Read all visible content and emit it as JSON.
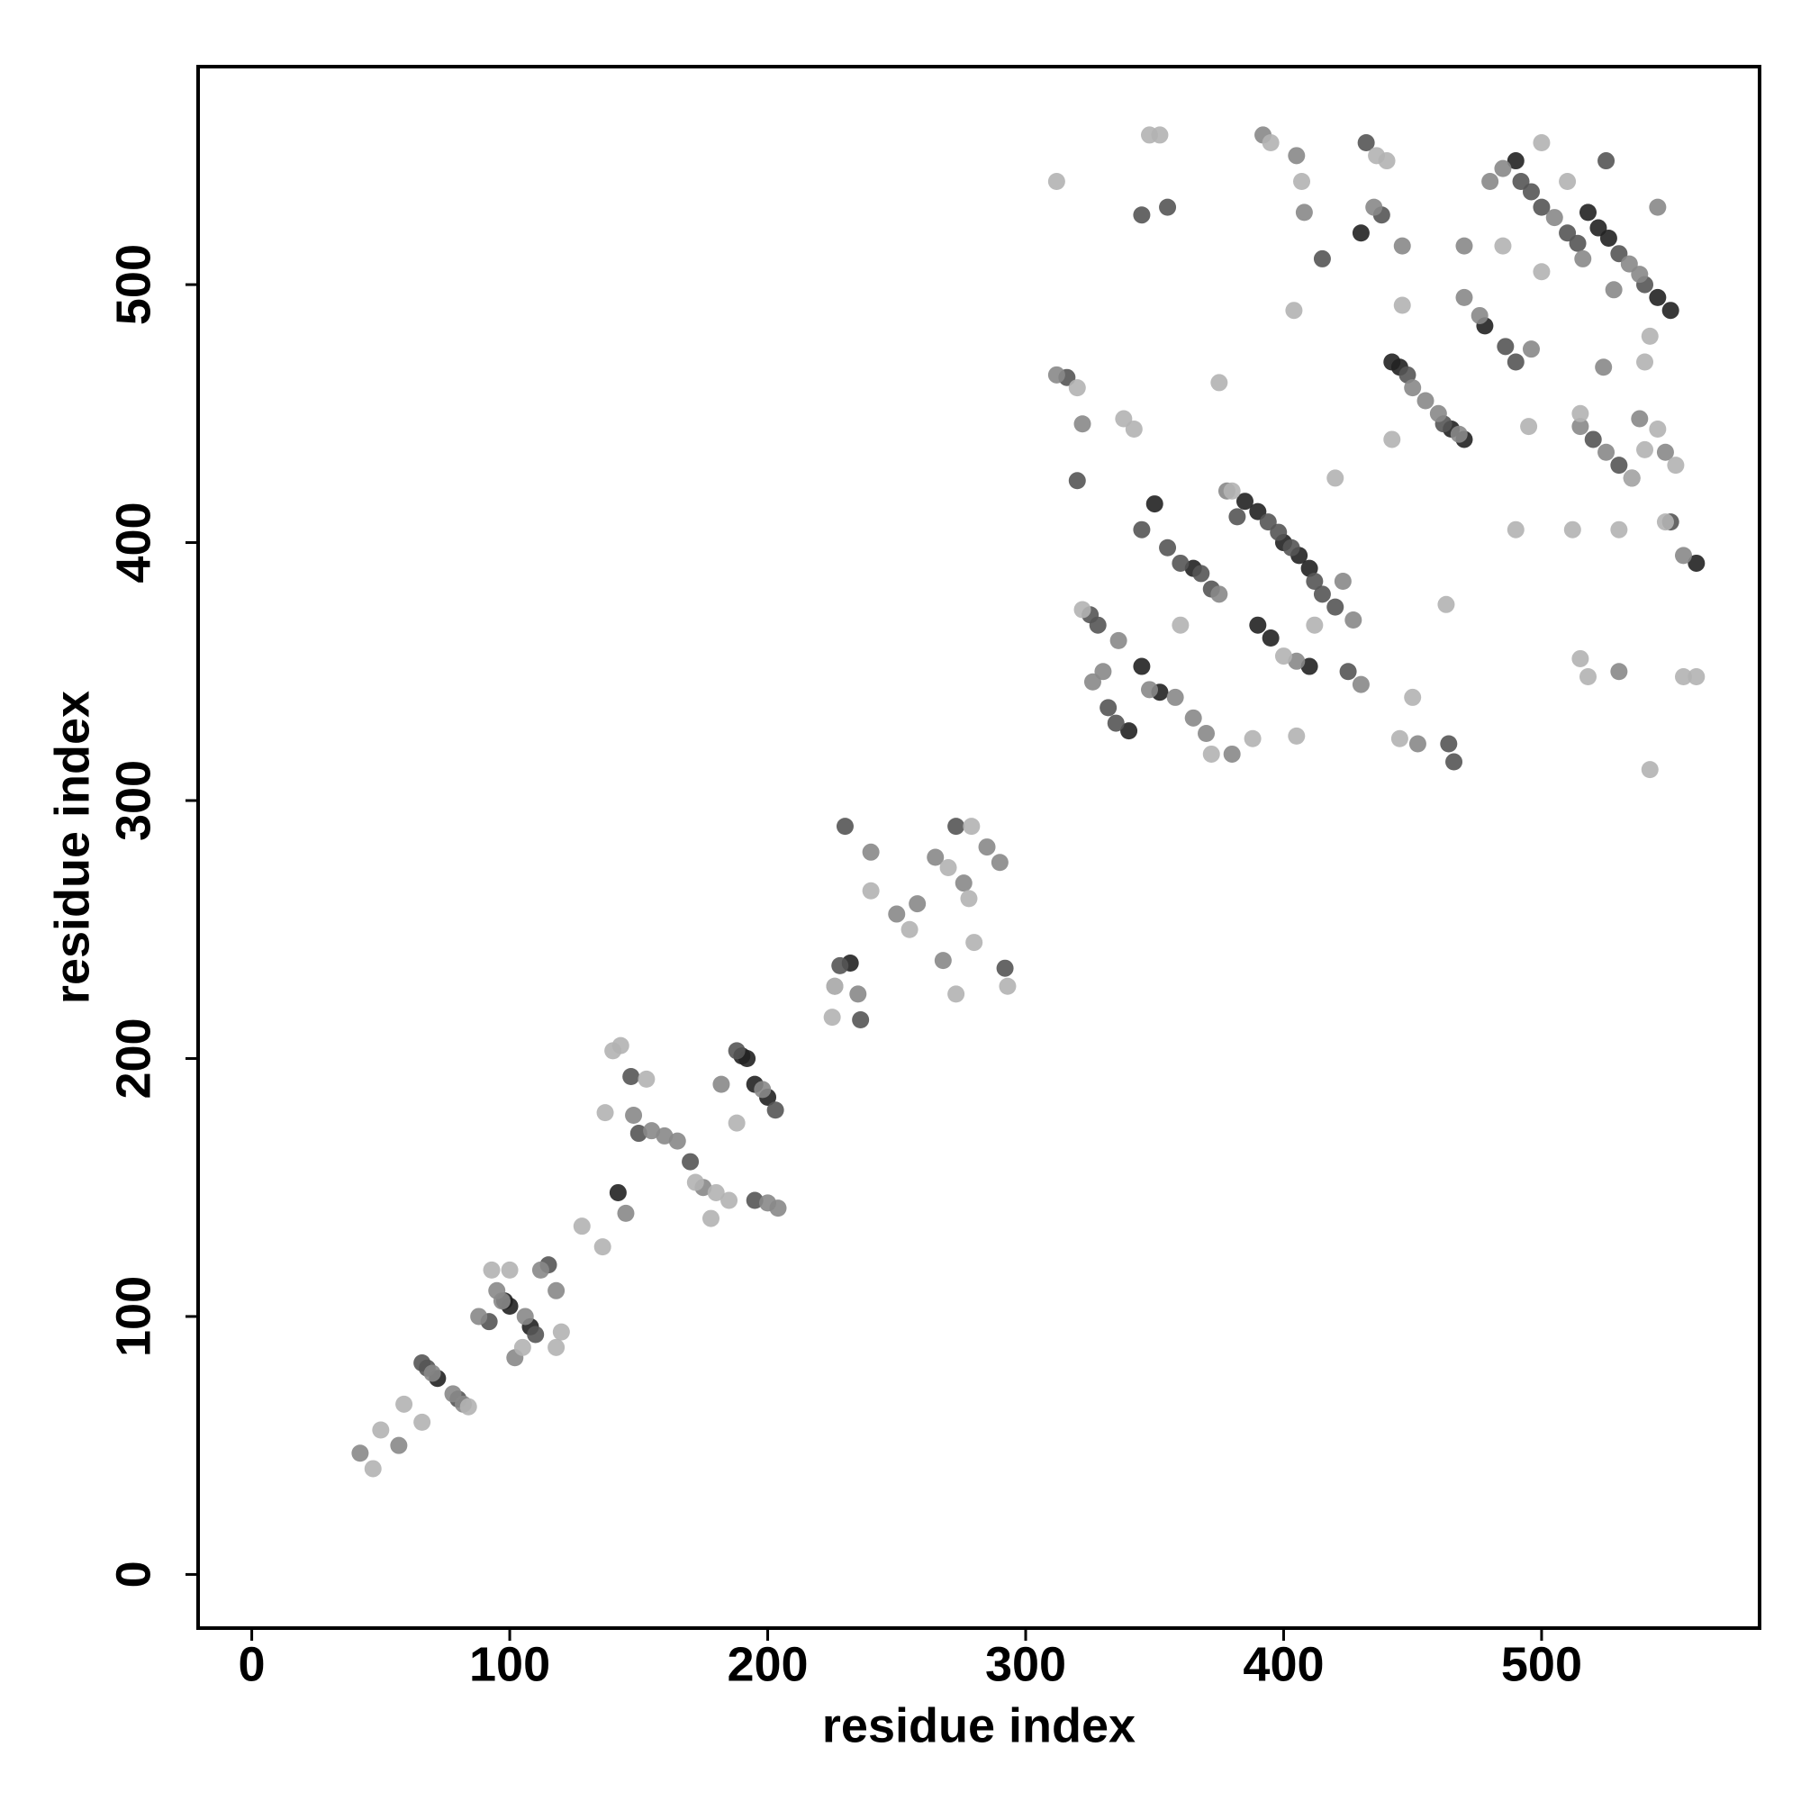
{
  "chart_data": {
    "type": "scatter",
    "xlabel": "residue index",
    "ylabel": "residue index",
    "xlim": [
      -20.8,
      584.5
    ],
    "ylim": [
      -20.8,
      584.5
    ],
    "xticks": [
      0,
      100,
      200,
      300,
      400,
      500
    ],
    "yticks": [
      0,
      100,
      200,
      300,
      400,
      500
    ],
    "series": [
      {
        "color": "#222222",
        "x": [
          72,
          98,
          100,
          108,
          142,
          190,
          192,
          195,
          200,
          232,
          345,
          352,
          350,
          385,
          390,
          400,
          406,
          410,
          390,
          395,
          410,
          442,
          445,
          465,
          470,
          490,
          518,
          522,
          526,
          545,
          550,
          478,
          560,
          340,
          365,
          430
        ],
        "y": [
          76,
          106,
          104,
          96,
          148,
          201,
          200,
          190,
          185,
          237,
          352,
          342,
          415,
          416,
          412,
          400,
          395,
          390,
          368,
          363,
          352,
          470,
          468,
          444,
          440,
          548,
          528,
          522,
          518,
          495,
          490,
          484,
          392,
          327,
          390,
          520
        ]
      },
      {
        "color": "#555555",
        "x": [
          66,
          68,
          80,
          92,
          110,
          115,
          147,
          150,
          170,
          188,
          203,
          195,
          228,
          236,
          230,
          273,
          292,
          316,
          320,
          325,
          328,
          332,
          335,
          345,
          355,
          360,
          368,
          372,
          382,
          394,
          398,
          403,
          412,
          415,
          420,
          425,
          345,
          355,
          432,
          438,
          448,
          462,
          492,
          496,
          500,
          510,
          514,
          530,
          540,
          525,
          520,
          530,
          535,
          550,
          464,
          466,
          486,
          490,
          415
        ],
        "y": [
          82,
          80,
          68,
          98,
          93,
          120,
          193,
          171,
          160,
          203,
          180,
          145,
          236,
          215,
          290,
          290,
          235,
          464,
          424,
          372,
          368,
          336,
          330,
          405,
          398,
          392,
          388,
          382,
          410,
          408,
          404,
          398,
          385,
          380,
          375,
          350,
          527,
          530,
          555,
          527,
          465,
          446,
          540,
          536,
          530,
          520,
          516,
          512,
          500,
          548,
          440,
          430,
          425,
          408,
          322,
          315,
          476,
          470,
          510
        ]
      },
      {
        "color": "#888888",
        "x": [
          42,
          57,
          70,
          78,
          82,
          88,
          95,
          97,
          102,
          106,
          112,
          118,
          145,
          148,
          155,
          160,
          165,
          175,
          182,
          198,
          200,
          204,
          226,
          235,
          240,
          250,
          258,
          265,
          276,
          285,
          290,
          268,
          312,
          322,
          326,
          330,
          336,
          348,
          358,
          365,
          370,
          375,
          378,
          380,
          405,
          423,
          427,
          430,
          392,
          405,
          408,
          435,
          446,
          450,
          452,
          455,
          460,
          468,
          470,
          476,
          480,
          485,
          496,
          505,
          516,
          524,
          528,
          534,
          538,
          545,
          525,
          515,
          555,
          530,
          538,
          548,
          470
        ],
        "y": [
          47,
          50,
          78,
          70,
          66,
          100,
          110,
          106,
          84,
          100,
          118,
          110,
          140,
          178,
          172,
          170,
          168,
          150,
          190,
          188,
          144,
          142,
          228,
          225,
          280,
          256,
          260,
          278,
          268,
          282,
          276,
          238,
          465,
          446,
          346,
          350,
          362,
          343,
          340,
          332,
          326,
          380,
          420,
          318,
          354,
          385,
          370,
          345,
          558,
          550,
          528,
          530,
          515,
          460,
          322,
          455,
          450,
          442,
          495,
          488,
          540,
          545,
          475,
          526,
          510,
          468,
          498,
          508,
          504,
          530,
          435,
          445,
          395,
          350,
          448,
          435,
          515
        ]
      },
      {
        "color": "#b3b3b3",
        "x": [
          47,
          50,
          59,
          66,
          84,
          93,
          100,
          105,
          118,
          120,
          128,
          136,
          137,
          140,
          143,
          153,
          172,
          178,
          180,
          185,
          188,
          225,
          226,
          240,
          255,
          270,
          278,
          279,
          280,
          293,
          273,
          312,
          320,
          322,
          338,
          342,
          372,
          375,
          360,
          380,
          388,
          400,
          405,
          412,
          420,
          348,
          352,
          395,
          404,
          407,
          436,
          440,
          442,
          446,
          445,
          450,
          463,
          490,
          485,
          495,
          500,
          510,
          512,
          515,
          518,
          535,
          540,
          540,
          542,
          545,
          548,
          552,
          555,
          560,
          542,
          515,
          530,
          500
        ],
        "y": [
          41,
          56,
          66,
          59,
          65,
          118,
          118,
          88,
          88,
          94,
          135,
          127,
          179,
          203,
          205,
          192,
          152,
          138,
          148,
          145,
          175,
          216,
          228,
          265,
          250,
          274,
          262,
          290,
          245,
          228,
          225,
          540,
          460,
          374,
          448,
          444,
          318,
          462,
          368,
          420,
          324,
          356,
          325,
          368,
          425,
          558,
          558,
          555,
          490,
          540,
          550,
          548,
          440,
          492,
          324,
          340,
          376,
          405,
          515,
          445,
          555,
          540,
          405,
          355,
          348,
          425,
          436,
          470,
          480,
          444,
          408,
          430,
          348,
          348,
          312,
          450,
          405,
          505
        ]
      }
    ]
  }
}
